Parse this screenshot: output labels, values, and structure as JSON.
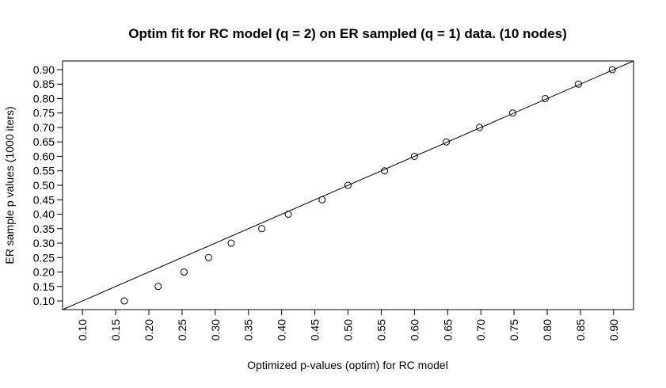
{
  "chart_data": {
    "type": "scatter",
    "title": "Optim fit for RC model (q = 2) on ER sampled (q = 1) data. (10 nodes)",
    "xlabel": "Optimized p-values (optim) for RC model",
    "ylabel": "ER sample p values (1000 iters)",
    "xlim": [
      0.07,
      0.93
    ],
    "ylim": [
      0.07,
      0.93
    ],
    "xticks": [
      "0.10",
      "0.15",
      "0.20",
      "0.25",
      "0.30",
      "0.35",
      "0.40",
      "0.45",
      "0.50",
      "0.55",
      "0.60",
      "0.65",
      "0.70",
      "0.75",
      "0.80",
      "0.85",
      "0.90"
    ],
    "yticks": [
      "0.90",
      "0.85",
      "0.80",
      "0.75",
      "0.70",
      "0.65",
      "0.60",
      "0.55",
      "0.50",
      "0.45",
      "0.40",
      "0.35",
      "0.30",
      "0.25",
      "0.20",
      "0.15",
      "0.10"
    ],
    "reference_line": {
      "type": "identity",
      "slope": 1,
      "intercept": 0
    },
    "grid": false,
    "legend": "none",
    "points": [
      {
        "x": 0.163,
        "y": 0.1
      },
      {
        "x": 0.214,
        "y": 0.15
      },
      {
        "x": 0.253,
        "y": 0.2
      },
      {
        "x": 0.29,
        "y": 0.25
      },
      {
        "x": 0.324,
        "y": 0.3
      },
      {
        "x": 0.37,
        "y": 0.35
      },
      {
        "x": 0.41,
        "y": 0.4
      },
      {
        "x": 0.461,
        "y": 0.45
      },
      {
        "x": 0.5,
        "y": 0.5
      },
      {
        "x": 0.555,
        "y": 0.55
      },
      {
        "x": 0.6,
        "y": 0.6
      },
      {
        "x": 0.648,
        "y": 0.65
      },
      {
        "x": 0.698,
        "y": 0.7
      },
      {
        "x": 0.748,
        "y": 0.75
      },
      {
        "x": 0.797,
        "y": 0.8
      },
      {
        "x": 0.847,
        "y": 0.85
      },
      {
        "x": 0.898,
        "y": 0.9
      }
    ]
  }
}
